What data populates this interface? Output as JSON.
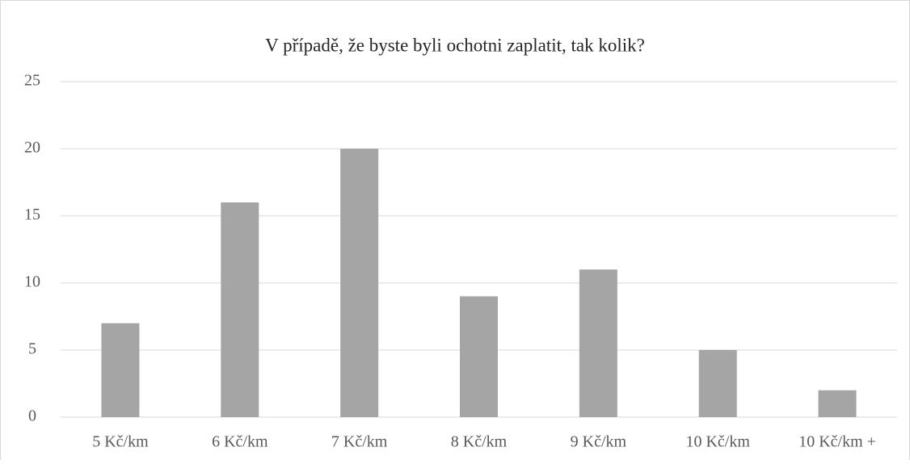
{
  "chart_data": {
    "type": "bar",
    "title": "V případě, že byste byli ochotni zaplatit, tak kolik?",
    "categories": [
      "5 Kč/km",
      "6 Kč/km",
      "7 Kč/km",
      "8 Kč/km",
      "9 Kč/km",
      "10 Kč/km",
      "10 Kč/km +"
    ],
    "values": [
      7,
      16,
      20,
      9,
      11,
      5,
      2
    ],
    "color": "#a5a5a5",
    "ylim": [
      0,
      25
    ],
    "yticks": [
      0,
      5,
      10,
      15,
      20,
      25
    ],
    "grid": true
  }
}
